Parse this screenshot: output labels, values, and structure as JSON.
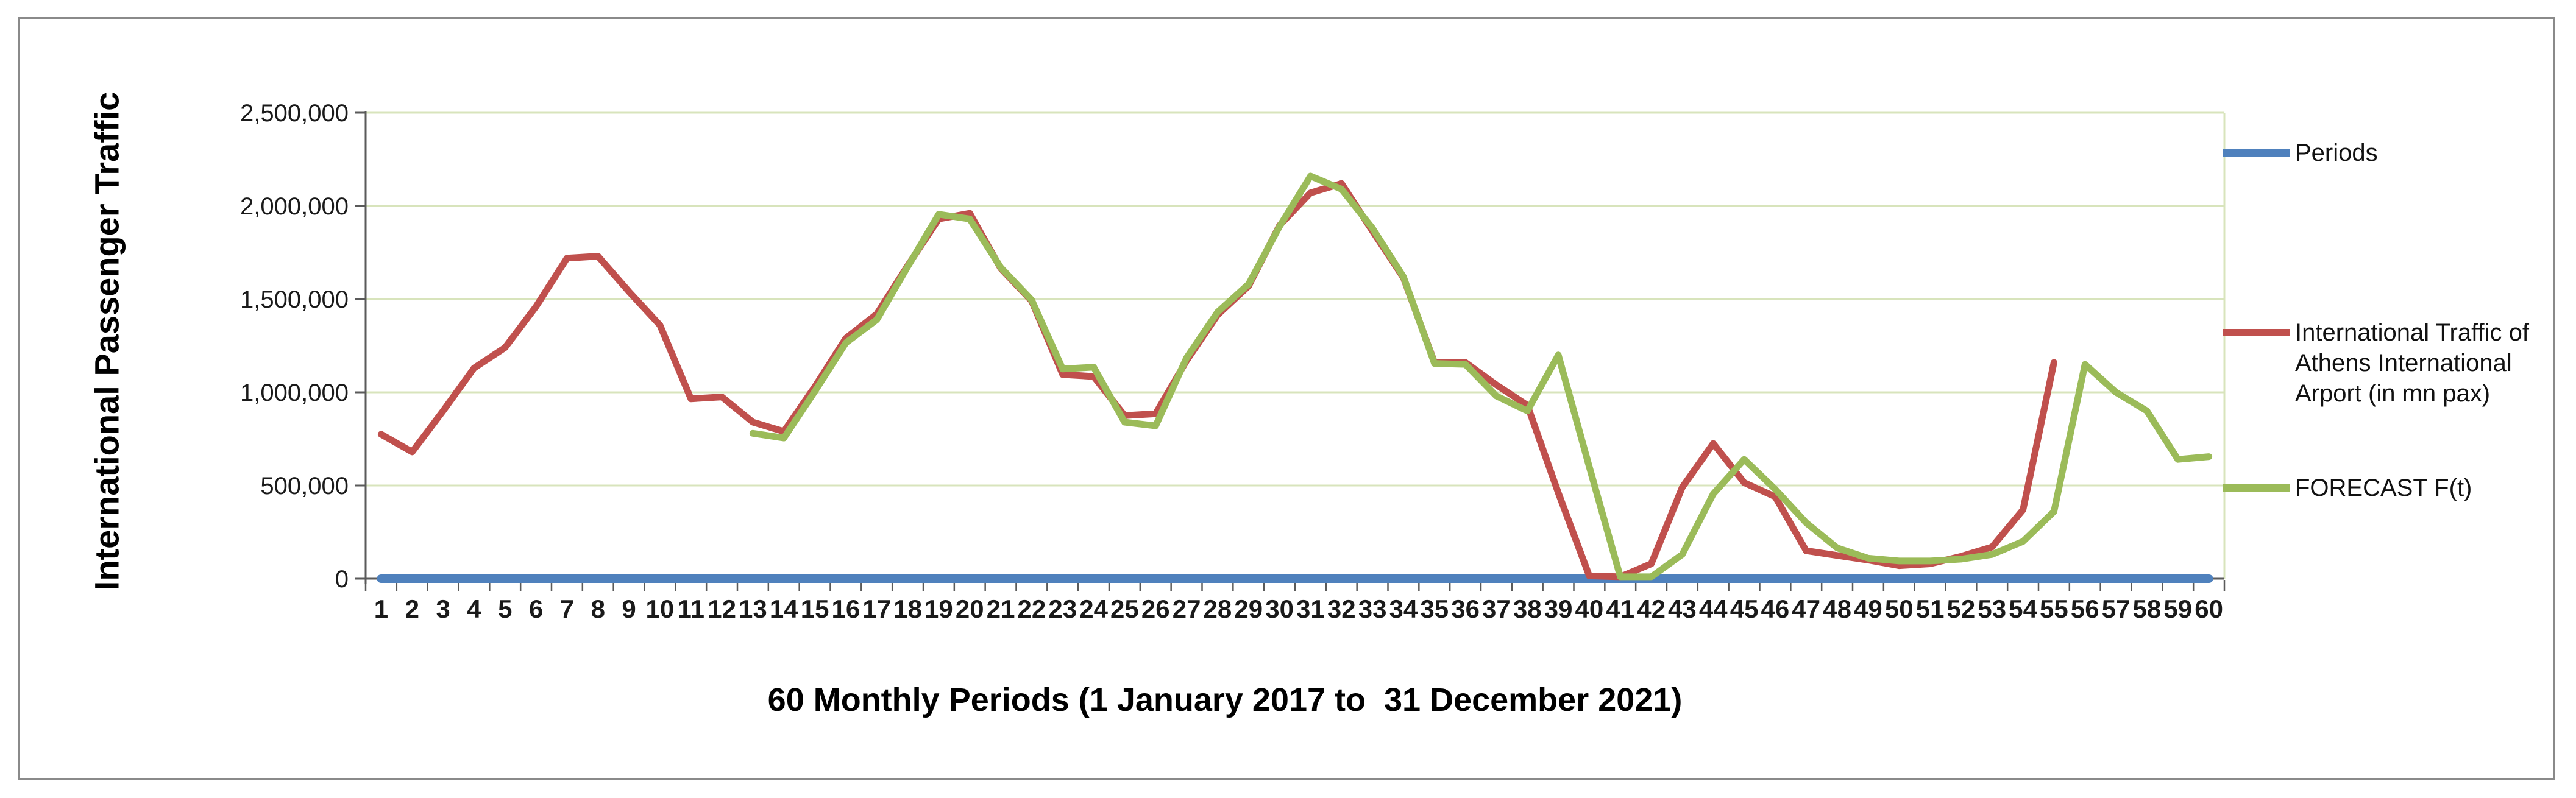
{
  "figure": {
    "background": "#ffffff",
    "border_color": "#8a8a8a"
  },
  "y_axis": {
    "title": "International Passenger Traffic",
    "tick_labels": [
      "2,500,000",
      "2,000,000",
      "1,500,000",
      "1,000,000",
      "500,000",
      "0"
    ],
    "min": 0,
    "max": 2500000,
    "step": 500000
  },
  "x_axis": {
    "title": "60 Monthly Periods (1 January 2017 to  31 December 2021)"
  },
  "legend": [
    {
      "label": "Periods",
      "label_lines": [
        "Periods"
      ],
      "color": "#4F81BD"
    },
    {
      "label": "International Traffic of Athens International Arport (in mn pax)",
      "label_lines": [
        "International Traffic of",
        "Athens International",
        "Arport (in mn pax)"
      ],
      "color": "#C0504D"
    },
    {
      "label": "FORECAST F(t)",
      "label_lines": [
        "FORECAST F(t)"
      ],
      "color": "#9BBB59"
    }
  ],
  "chart_data": {
    "type": "line",
    "title": "",
    "xlabel": "60 Monthly Periods (1 January 2017 to  31 December 2021)",
    "ylabel": "International Passenger Traffic",
    "ylim": [
      0,
      2500000
    ],
    "grid": true,
    "grid_color": "#D8E4BC",
    "legend_position": "right",
    "x": [
      1,
      2,
      3,
      4,
      5,
      6,
      7,
      8,
      9,
      10,
      11,
      12,
      13,
      14,
      15,
      16,
      17,
      18,
      19,
      20,
      21,
      22,
      23,
      24,
      25,
      26,
      27,
      28,
      29,
      30,
      31,
      32,
      33,
      34,
      35,
      36,
      37,
      38,
      39,
      40,
      41,
      42,
      43,
      44,
      45,
      46,
      47,
      48,
      49,
      50,
      51,
      52,
      53,
      54,
      55,
      56,
      57,
      58,
      59,
      60
    ],
    "series": [
      {
        "name": "Periods",
        "color": "#4F81BD",
        "stroke_width": 14,
        "values": [
          1,
          2,
          3,
          4,
          5,
          6,
          7,
          8,
          9,
          10,
          11,
          12,
          13,
          14,
          15,
          16,
          17,
          18,
          19,
          20,
          21,
          22,
          23,
          24,
          25,
          26,
          27,
          28,
          29,
          30,
          31,
          32,
          33,
          34,
          35,
          36,
          37,
          38,
          39,
          40,
          41,
          42,
          43,
          44,
          45,
          46,
          47,
          48,
          49,
          50,
          51,
          52,
          53,
          54,
          55,
          56,
          57,
          58,
          59,
          60
        ]
      },
      {
        "name": "International Traffic of Athens International Arport (in mn pax)",
        "color": "#C0504D",
        "stroke_width": 11,
        "values": [
          775000,
          680000,
          900000,
          1130000,
          1240000,
          1460000,
          1720000,
          1730000,
          1540000,
          1360000,
          965000,
          975000,
          840000,
          790000,
          1030000,
          1290000,
          1420000,
          1680000,
          1930000,
          1960000,
          1665000,
          1490000,
          1095000,
          1085000,
          875000,
          885000,
          1170000,
          1415000,
          1570000,
          1895000,
          2070000,
          2120000,
          1865000,
          1615000,
          1160000,
          1160000,
          1040000,
          930000,
          460000,
          15000,
          10000,
          80000,
          490000,
          725000,
          515000,
          440000,
          150000,
          125000,
          100000,
          70000,
          80000,
          120000,
          170000,
          370000,
          1160000,
          null,
          null,
          null,
          null,
          null
        ]
      },
      {
        "name": "FORECAST F(t)",
        "color": "#9BBB59",
        "stroke_width": 11,
        "values": [
          null,
          null,
          null,
          null,
          null,
          null,
          null,
          null,
          null,
          null,
          null,
          null,
          780000,
          755000,
          1005000,
          1265000,
          1390000,
          1675000,
          1955000,
          1930000,
          1670000,
          1495000,
          1125000,
          1135000,
          840000,
          820000,
          1185000,
          1430000,
          1580000,
          1890000,
          2160000,
          2090000,
          1880000,
          1620000,
          1155000,
          1150000,
          980000,
          900000,
          1200000,
          600000,
          10000,
          10000,
          130000,
          455000,
          640000,
          480000,
          300000,
          165000,
          110000,
          95000,
          95000,
          105000,
          130000,
          200000,
          360000,
          1150000,
          1000000,
          900000,
          640000,
          655000
        ]
      }
    ]
  }
}
